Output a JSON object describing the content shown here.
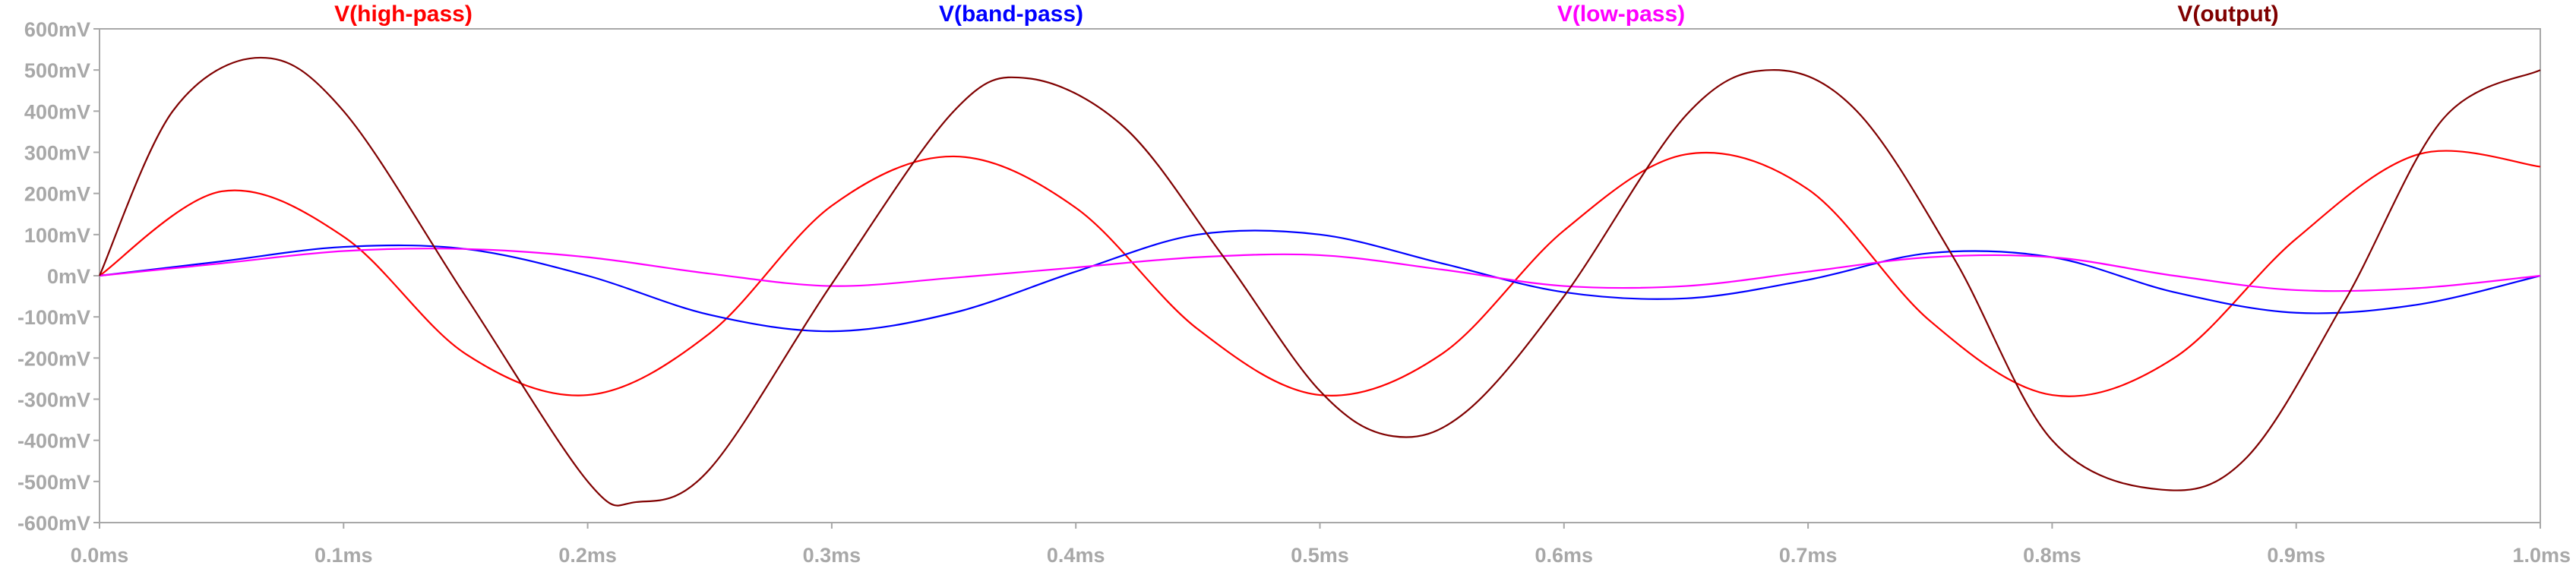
{
  "chart_data": {
    "type": "line",
    "x_unit": "ms",
    "y_unit": "mV",
    "xlim": [
      0,
      1.0
    ],
    "ylim": [
      -600,
      600
    ],
    "grid": false,
    "legend_position": "top",
    "x_ticks": [
      {
        "value": 0.0,
        "label": "0.0ms"
      },
      {
        "value": 0.1,
        "label": "0.1ms"
      },
      {
        "value": 0.2,
        "label": "0.2ms"
      },
      {
        "value": 0.3,
        "label": "0.3ms"
      },
      {
        "value": 0.4,
        "label": "0.4ms"
      },
      {
        "value": 0.5,
        "label": "0.5ms"
      },
      {
        "value": 0.6,
        "label": "0.6ms"
      },
      {
        "value": 0.7,
        "label": "0.7ms"
      },
      {
        "value": 0.8,
        "label": "0.8ms"
      },
      {
        "value": 0.9,
        "label": "0.9ms"
      },
      {
        "value": 1.0,
        "label": "1.0ms"
      }
    ],
    "y_ticks": [
      {
        "value": 600,
        "label": "600mV"
      },
      {
        "value": 500,
        "label": "500mV"
      },
      {
        "value": 400,
        "label": "400mV"
      },
      {
        "value": 300,
        "label": "300mV"
      },
      {
        "value": 200,
        "label": "200mV"
      },
      {
        "value": 100,
        "label": "100mV"
      },
      {
        "value": 0,
        "label": "0mV"
      },
      {
        "value": -100,
        "label": "-100mV"
      },
      {
        "value": -200,
        "label": "-200mV"
      },
      {
        "value": -300,
        "label": "-300mV"
      },
      {
        "value": -400,
        "label": "-400mV"
      },
      {
        "value": -500,
        "label": "-500mV"
      },
      {
        "value": -600,
        "label": "-600mV"
      }
    ],
    "series": [
      {
        "name": "V(high-pass)",
        "color": "#ff0000",
        "x": [
          0.0,
          0.05,
          0.1,
          0.15,
          0.2,
          0.25,
          0.3,
          0.35,
          0.4,
          0.45,
          0.5,
          0.55,
          0.6,
          0.65,
          0.7,
          0.75,
          0.8,
          0.85,
          0.9,
          0.95,
          1.0
        ],
        "y": [
          0,
          205,
          95,
          -190,
          -290,
          -140,
          170,
          290,
          165,
          -130,
          -290,
          -190,
          110,
          295,
          210,
          -110,
          -290,
          -200,
          90,
          295,
          265
        ]
      },
      {
        "name": "V(band-pass)",
        "color": "#0000ff",
        "x": [
          0.0,
          0.05,
          0.1,
          0.15,
          0.2,
          0.25,
          0.3,
          0.35,
          0.4,
          0.45,
          0.5,
          0.55,
          0.6,
          0.65,
          0.7,
          0.75,
          0.8,
          0.85,
          0.9,
          0.95,
          1.0
        ],
        "y": [
          0,
          35,
          70,
          65,
          0,
          -95,
          -135,
          -90,
          10,
          100,
          100,
          30,
          -40,
          -55,
          -10,
          55,
          45,
          -40,
          -90,
          -70,
          0
        ]
      },
      {
        "name": "V(low-pass)",
        "color": "#ff00ff",
        "x": [
          0.0,
          0.05,
          0.1,
          0.15,
          0.2,
          0.25,
          0.3,
          0.35,
          0.4,
          0.45,
          0.5,
          0.55,
          0.6,
          0.65,
          0.7,
          0.75,
          0.8,
          0.85,
          0.9,
          0.95,
          1.0
        ],
        "y": [
          0,
          30,
          60,
          65,
          45,
          5,
          -25,
          -5,
          20,
          45,
          50,
          15,
          -25,
          -25,
          10,
          45,
          45,
          0,
          -35,
          -30,
          0
        ]
      },
      {
        "name": "V(output)",
        "color": "#800000",
        "x": [
          0.0,
          0.03,
          0.066,
          0.1,
          0.15,
          0.2,
          0.22,
          0.25,
          0.3,
          0.35,
          0.38,
          0.42,
          0.46,
          0.5,
          0.53,
          0.56,
          0.6,
          0.65,
          0.685,
          0.72,
          0.76,
          0.8,
          0.845,
          0.88,
          0.92,
          0.96,
          1.0
        ],
        "y": [
          0,
          400,
          530,
          400,
          -50,
          -500,
          -550,
          -470,
          -20,
          400,
          480,
          360,
          50,
          -280,
          -390,
          -330,
          -50,
          390,
          500,
          400,
          40,
          -400,
          -520,
          -440,
          -60,
          380,
          500
        ]
      }
    ]
  }
}
